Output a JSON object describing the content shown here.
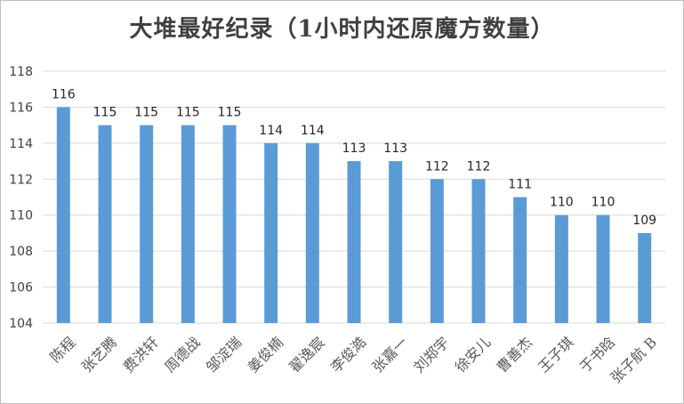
{
  "chart_data": {
    "type": "bar",
    "title": "大堆最好纪录（1小时内还原魔方数量）",
    "xlabel": "",
    "ylabel": "",
    "categories": [
      "陈程",
      "张艺腾",
      "费洪轩",
      "周德战",
      "邹淀瑞",
      "姜俊楠",
      "翟逸宸",
      "李俊澔",
      "张嘉一",
      "刘郑宇",
      "徐安儿",
      "曹善杰",
      "王子琪",
      "于书晗",
      "张子航 B"
    ],
    "values": [
      116,
      115,
      115,
      115,
      115,
      114,
      114,
      113,
      113,
      112,
      112,
      111,
      110,
      110,
      109
    ],
    "ylim": [
      104,
      118
    ],
    "yticks": [
      104,
      106,
      108,
      110,
      112,
      114,
      116,
      118
    ],
    "data_labels": true,
    "grid": true,
    "legend": "none",
    "bar_color": "#5b9bd5",
    "grid_color": "#d9d9d9"
  }
}
